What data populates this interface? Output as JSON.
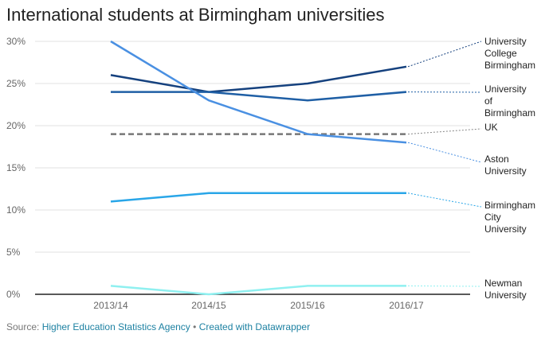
{
  "title": "International students at Birmingham universities",
  "footer": {
    "source_prefix": "Source:",
    "source_name": "Higher Education Statistics Agency",
    "separator": "•",
    "created_with": "Created with Datawrapper"
  },
  "chart_data": {
    "type": "line",
    "title": "International students at Birmingham universities",
    "xlabel": "",
    "ylabel": "",
    "categories": [
      "2013/14",
      "2014/15",
      "2015/16",
      "2016/17"
    ],
    "ylim": [
      0,
      30
    ],
    "yticks": [
      0,
      5,
      10,
      15,
      20,
      25,
      30
    ],
    "ytick_labels": [
      "0%",
      "5%",
      "10%",
      "15%",
      "20%",
      "25%",
      "30%"
    ],
    "grid": true,
    "legend": "direct labels at right",
    "series": [
      {
        "name": "University College Birmingham",
        "label_lines": [
          "University",
          "College",
          "Birmingham"
        ],
        "values": [
          26,
          24,
          25,
          27
        ],
        "color": "#15417e",
        "dashed": false
      },
      {
        "name": "University of Birmingham",
        "label_lines": [
          "University",
          "of",
          "Birmingham"
        ],
        "values": [
          24,
          24,
          23,
          24
        ],
        "color": "#1f5fa5",
        "dashed": false
      },
      {
        "name": "UK",
        "label_lines": [
          "UK"
        ],
        "values": [
          19,
          19,
          19,
          19
        ],
        "color": "#777777",
        "dashed": true
      },
      {
        "name": "Aston University",
        "label_lines": [
          "Aston",
          "University"
        ],
        "values": [
          30,
          23,
          19,
          18
        ],
        "color": "#4a90e2",
        "dashed": false
      },
      {
        "name": "Birmingham City University",
        "label_lines": [
          "Birmingham",
          "City",
          "University"
        ],
        "values": [
          11,
          12,
          12,
          12
        ],
        "color": "#29a6e8",
        "dashed": false
      },
      {
        "name": "Newman University",
        "label_lines": [
          "Newman",
          "University"
        ],
        "values": [
          1,
          0,
          1,
          1
        ],
        "color": "#8ff0f0",
        "dashed": false
      }
    ]
  }
}
